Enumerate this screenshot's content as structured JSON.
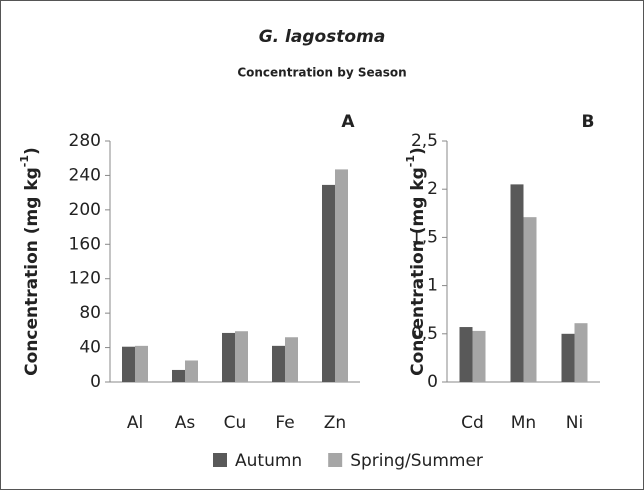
{
  "title": "G. lagostoma",
  "subtitle": "Concentration by Season",
  "chart_data": [
    {
      "type": "bar",
      "panel": "A",
      "y_label": {
        "text": "Concentration (mg kg",
        "superscript": "-1",
        "close": ")"
      },
      "categories": [
        "Al",
        "As",
        "Cu",
        "Fe",
        "Zn"
      ],
      "series": [
        {
          "name": "Autumn",
          "color": "#595959",
          "values": [
            41,
            14,
            57,
            42,
            229
          ]
        },
        {
          "name": "Spring/Summer",
          "color": "#a6a6a6",
          "values": [
            42,
            25,
            59,
            52,
            247
          ]
        }
      ],
      "ylim": [
        0,
        280
      ],
      "yticks": [
        0,
        40,
        80,
        120,
        160,
        200,
        240,
        280
      ],
      "grid": false
    },
    {
      "type": "bar",
      "panel": "B",
      "y_label": {
        "text": "Concentration (mg kg",
        "superscript": "-1",
        "close": ")"
      },
      "categories": [
        "Cd",
        "Mn",
        "Ni"
      ],
      "series": [
        {
          "color": "#595959",
          "values": [
            0.57,
            2.05,
            0.5
          ]
        },
        {
          "color": "#a6a6a6",
          "values": [
            0.53,
            1.71,
            0.61
          ]
        }
      ],
      "ylim": [
        0,
        2.5
      ],
      "yticks": [
        0,
        {
          "value": 0.5,
          "label": "0,5"
        },
        1,
        {
          "value": 1.5,
          "label": "1,5"
        },
        2,
        {
          "value": 2.5,
          "label": "2,5"
        }
      ],
      "grid": false
    }
  ]
}
